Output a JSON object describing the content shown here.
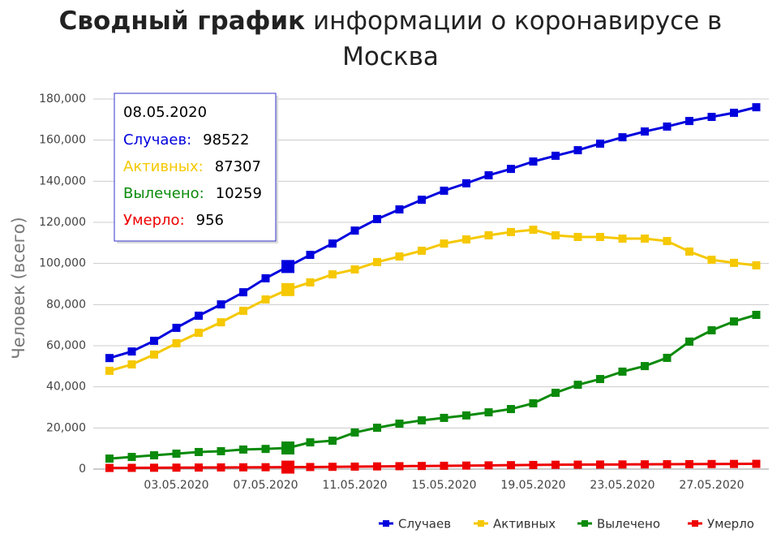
{
  "chart_data": {
    "type": "line",
    "title": {
      "bold": "Сводный график",
      "regular": "информации о коронавирусе в Москва"
    },
    "y_label": "Человек (всего)",
    "categories": [
      null,
      null,
      null,
      "03.05.2020",
      null,
      null,
      null,
      "07.05.2020",
      null,
      null,
      null,
      "11.05.2020",
      null,
      null,
      null,
      "15.05.2020",
      null,
      null,
      null,
      "19.05.2020",
      null,
      null,
      null,
      "23.05.2020",
      null,
      null,
      null,
      "27.05.2020",
      null,
      null
    ],
    "series": [
      {
        "name": "Случаев",
        "color": "#0000dd",
        "values": [
          54000,
          57200,
          62400,
          68700,
          74600,
          80100,
          86000,
          92800,
          98522,
          104200,
          109700,
          116000,
          121600,
          126300,
          131000,
          135400,
          139000,
          142900,
          146000,
          149600,
          152400,
          155100,
          158300,
          161400,
          164200,
          166600,
          169300,
          171300,
          173300,
          176000
        ]
      },
      {
        "name": "Активных",
        "color": "#f5c800",
        "values": [
          47800,
          50900,
          55700,
          61200,
          66300,
          71400,
          77000,
          82500,
          87307,
          90800,
          94700,
          97100,
          100700,
          103400,
          106200,
          109700,
          111700,
          113700,
          115300,
          116400,
          113700,
          112900,
          112900,
          112100,
          112100,
          110900,
          105800,
          101800,
          100300,
          99100
        ]
      },
      {
        "name": "Вылечено",
        "color": "#0a8a0a",
        "values": [
          5100,
          5900,
          6700,
          7500,
          8300,
          8700,
          9500,
          9800,
          10259,
          13000,
          13800,
          17800,
          20100,
          22100,
          23700,
          24900,
          26100,
          27600,
          29200,
          32000,
          37100,
          41000,
          43800,
          47400,
          50100,
          54100,
          62000,
          67500,
          71800,
          75000
        ]
      },
      {
        "name": "Умерло",
        "color": "#ee0000",
        "values": [
          550,
          600,
          650,
          700,
          750,
          800,
          850,
          900,
          956,
          1000,
          1100,
          1200,
          1300,
          1400,
          1500,
          1600,
          1700,
          1800,
          1900,
          2000,
          2100,
          2150,
          2200,
          2250,
          2300,
          2350,
          2400,
          2450,
          2500,
          2550
        ]
      }
    ],
    "ylim": [
      0,
      180000
    ],
    "yticks": [
      0,
      {
        "value": 20000,
        "label": "20,000"
      },
      {
        "value": 40000,
        "label": "40,000"
      },
      {
        "value": 60000,
        "label": "60,000"
      },
      {
        "value": 80000,
        "label": "80,000"
      },
      {
        "value": 100000,
        "label": "100,000"
      },
      {
        "value": 120000,
        "label": "120,000"
      },
      {
        "value": 140000,
        "label": "140,000"
      },
      {
        "value": 160000,
        "label": "160,000"
      },
      {
        "value": 180000,
        "label": "180,000"
      }
    ],
    "grid": true,
    "legend": "bottom-right",
    "tooltip": {
      "title": "08.05.2020",
      "rows": [
        {
          "label": "Случаев:",
          "value": 98522
        },
        {
          "label": "Активных:",
          "value": 87307
        },
        {
          "label": "Вылечено:",
          "value": 10259
        },
        {
          "label": "Умерло:",
          "value": 956
        }
      ]
    }
  }
}
